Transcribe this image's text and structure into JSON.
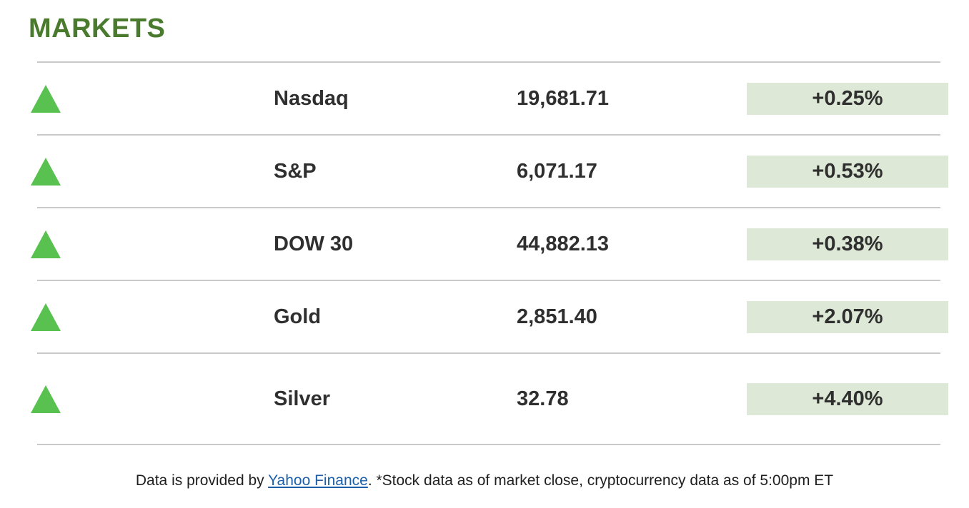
{
  "title": "MARKETS",
  "colors": {
    "title_green": "#4a7a2e",
    "arrow_green": "#58c150",
    "badge_background": "#dde8d6",
    "text_dark": "#2f2f2f",
    "divider_gray": "#c9c9c9",
    "link_blue": "#1b5faa"
  },
  "markets": {
    "rows": [
      {
        "name": "Nasdaq",
        "value": "19,681.71",
        "change": "+0.25%",
        "direction": "up"
      },
      {
        "name": "S&P",
        "value": "6,071.17",
        "change": "+0.53%",
        "direction": "up"
      },
      {
        "name": "DOW 30",
        "value": "44,882.13",
        "change": "+0.38%",
        "direction": "up"
      },
      {
        "name": "Gold",
        "value": "2,851.40",
        "change": "+2.07%",
        "direction": "up"
      },
      {
        "name": "Silver",
        "value": "32.78",
        "change": "+4.40%",
        "direction": "up"
      }
    ]
  },
  "footer": {
    "prefix": "Data is provided by ",
    "link_text": "Yahoo Finance",
    "suffix": ". *Stock data as of market close, cryptocurrency data as of 5:00pm ET"
  }
}
